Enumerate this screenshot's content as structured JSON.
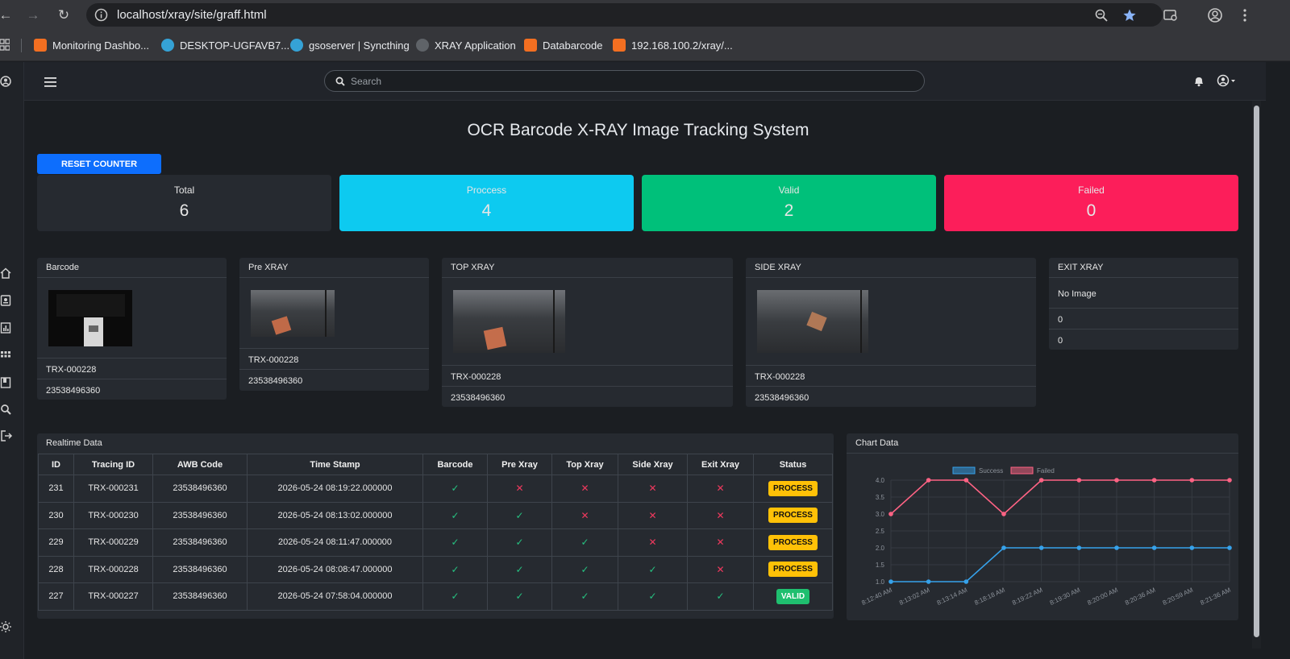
{
  "browser": {
    "url": "localhost/xray/site/graff.html",
    "bookmarks": [
      {
        "label": "Monitoring Dashbo...",
        "icon": "orange"
      },
      {
        "label": "DESKTOP-UGFAVB7...",
        "icon": "blue"
      },
      {
        "label": "gsoserver | Syncthing",
        "icon": "blue"
      },
      {
        "label": "XRAY Application",
        "icon": "globe"
      },
      {
        "label": "Databarcode",
        "icon": "orange"
      },
      {
        "label": "192.168.100.2/xray/...",
        "icon": "orange"
      }
    ]
  },
  "header": {
    "search_placeholder": "Search"
  },
  "page": {
    "title": "OCR Barcode X-RAY Image Tracking System",
    "reset_label": "RESET COUNTER"
  },
  "stats": [
    {
      "label": "Total",
      "value": "6",
      "color": "#262a30"
    },
    {
      "label": "Proccess",
      "value": "4",
      "color": "#0dcaf0"
    },
    {
      "label": "Valid",
      "value": "2",
      "color": "#00c07a"
    },
    {
      "label": "Failed",
      "value": "0",
      "color": "#fc1e5a"
    }
  ],
  "cards": {
    "barcode": {
      "title": "Barcode",
      "tracing": "TRX-000228",
      "awb": "23538496360"
    },
    "pre_xray": {
      "title": "Pre XRAY",
      "tracing": "TRX-000228",
      "awb": "23538496360"
    },
    "top_xray": {
      "title": "TOP XRAY",
      "tracing": "TRX-000228",
      "awb": "23538496360"
    },
    "side_xray": {
      "title": "SIDE XRAY",
      "tracing": "TRX-000228",
      "awb": "23538496360"
    },
    "exit_xray": {
      "title": "EXIT XRAY",
      "no_image": "No Image",
      "tracing": "0",
      "awb": "0"
    }
  },
  "realtime": {
    "title": "Realtime Data",
    "columns": [
      "ID",
      "Tracing ID",
      "AWB Code",
      "Time Stamp",
      "Barcode",
      "Pre Xray",
      "Top Xray",
      "Side Xray",
      "Exit Xray",
      "Status"
    ],
    "rows": [
      {
        "id": "231",
        "tracing": "TRX-000231",
        "awb": "23538496360",
        "time": "2026-05-24 08:19:22.000000",
        "barcode": true,
        "pre": false,
        "top": false,
        "side": false,
        "exit": false,
        "status": "PROCESS"
      },
      {
        "id": "230",
        "tracing": "TRX-000230",
        "awb": "23538496360",
        "time": "2026-05-24 08:13:02.000000",
        "barcode": true,
        "pre": true,
        "top": false,
        "side": false,
        "exit": false,
        "status": "PROCESS"
      },
      {
        "id": "229",
        "tracing": "TRX-000229",
        "awb": "23538496360",
        "time": "2026-05-24 08:11:47.000000",
        "barcode": true,
        "pre": true,
        "top": true,
        "side": false,
        "exit": false,
        "status": "PROCESS"
      },
      {
        "id": "228",
        "tracing": "TRX-000228",
        "awb": "23538496360",
        "time": "2026-05-24 08:08:47.000000",
        "barcode": true,
        "pre": true,
        "top": true,
        "side": true,
        "exit": false,
        "status": "PROCESS"
      },
      {
        "id": "227",
        "tracing": "TRX-000227",
        "awb": "23538496360",
        "time": "2026-05-24 07:58:04.000000",
        "barcode": true,
        "pre": true,
        "top": true,
        "side": true,
        "exit": true,
        "status": "VALID"
      }
    ]
  },
  "chart": {
    "title": "Chart Data"
  },
  "chart_data": {
    "type": "line",
    "x": [
      "8:12:40 AM",
      "8:13:02 AM",
      "8:13:14 AM",
      "8:18:18 AM",
      "8:19:22 AM",
      "8:19:30 AM",
      "8:20:00 AM",
      "8:20:36 AM",
      "8:20:59 AM",
      "8:21:36 AM"
    ],
    "series": [
      {
        "name": "Success",
        "color": "#36a2eb",
        "values": [
          1,
          1,
          1,
          2,
          2,
          2,
          2,
          2,
          2,
          2
        ]
      },
      {
        "name": "Failed",
        "color": "#ff6384",
        "values": [
          3,
          4,
          4,
          3,
          4,
          4,
          4,
          4,
          4,
          4
        ]
      }
    ],
    "yticks": [
      "1.0",
      "1.5",
      "2.0",
      "2.5",
      "3.0",
      "3.5",
      "4.0"
    ],
    "ylim": [
      1,
      4
    ],
    "grid": true,
    "legend": "top"
  }
}
